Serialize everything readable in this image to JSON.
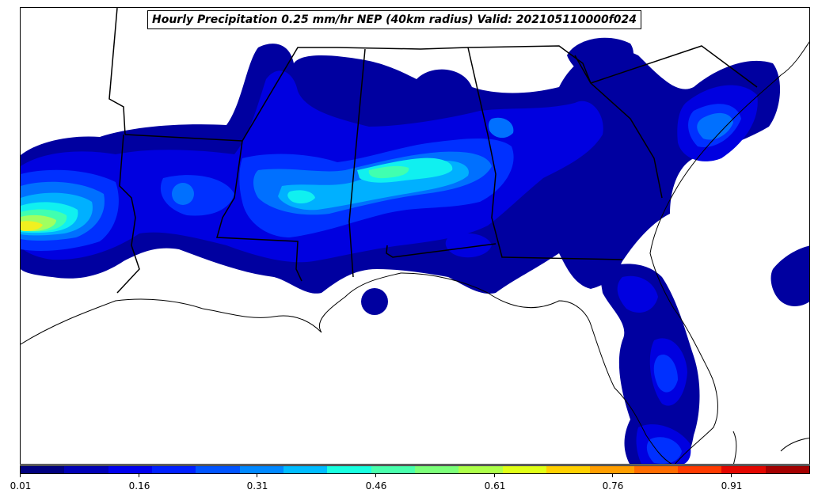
{
  "title": "Hourly Precipitation 0.25 mm/hr NEP (40km radius) Valid: 202105110000f024",
  "colorbar": {
    "ticks": [
      "0.01",
      "0.16",
      "0.31",
      "0.46",
      "0.61",
      "0.76",
      "0.91"
    ],
    "colors": [
      "#00007f",
      "#0000b6",
      "#0000ed",
      "#0020ff",
      "#0054ff",
      "#0088ff",
      "#00bcff",
      "#1affe0",
      "#4affad",
      "#7cff7a",
      "#adff4a",
      "#e0ff17",
      "#ffd000",
      "#ff9e00",
      "#ff6c00",
      "#ff3a00",
      "#e30700",
      "#a40000"
    ]
  },
  "field_colors": {
    "level1": "#0000a0",
    "level2": "#0000e0",
    "level3": "#0030ff",
    "level4": "#0070ff",
    "level5": "#00b0ff",
    "level6": "#10f0f0",
    "level7": "#40ffb0",
    "level8": "#a0ff60",
    "level9": "#f0f020"
  }
}
